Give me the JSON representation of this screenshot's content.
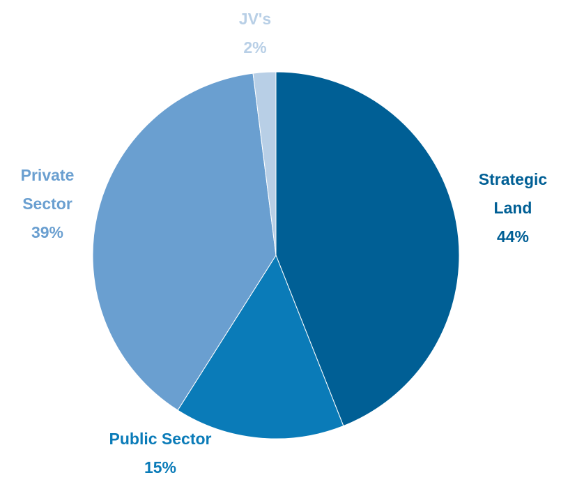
{
  "chart_data": {
    "type": "pie",
    "categories": [
      "Strategic Land",
      "Public Sector",
      "Private Sector",
      "JV's"
    ],
    "values": [
      44,
      15,
      39,
      2
    ],
    "value_labels": [
      "44%",
      "15%",
      "39%",
      "2%"
    ],
    "colors": [
      "#005f95",
      "#0a7bb8",
      "#6a9fd0",
      "#b8cfe6"
    ]
  }
}
